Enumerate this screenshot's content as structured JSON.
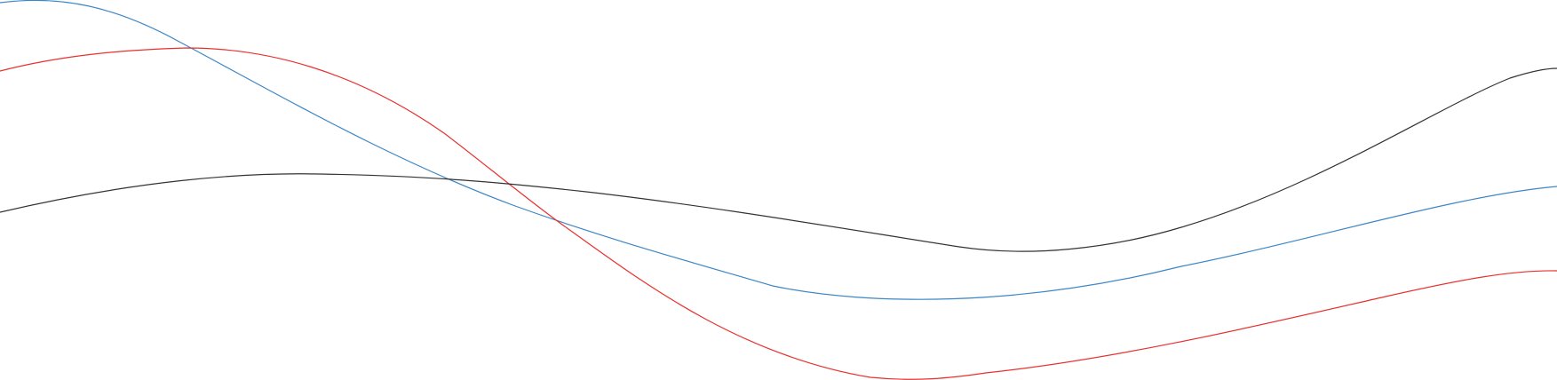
{
  "background_color": "#ffffff",
  "curves": [
    {
      "name": "blue-wave",
      "color": "#3d86c6"
    },
    {
      "name": "red-wave",
      "color": "#e8312f"
    },
    {
      "name": "black-wave",
      "color": "#333333"
    }
  ]
}
